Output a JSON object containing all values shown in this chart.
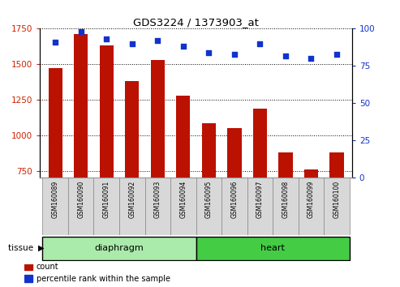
{
  "title": "GDS3224 / 1373903_at",
  "categories": [
    "GSM160089",
    "GSM160090",
    "GSM160091",
    "GSM160092",
    "GSM160093",
    "GSM160094",
    "GSM160095",
    "GSM160096",
    "GSM160097",
    "GSM160098",
    "GSM160099",
    "GSM160100"
  ],
  "counts": [
    1470,
    1715,
    1630,
    1380,
    1530,
    1280,
    1085,
    1050,
    1185,
    880,
    760,
    880
  ],
  "percentiles": [
    91,
    98,
    93,
    90,
    92,
    88,
    84,
    83,
    90,
    82,
    80,
    83
  ],
  "bar_color": "#bb1100",
  "dot_color": "#1133cc",
  "ylim_left": [
    700,
    1750
  ],
  "ylim_right": [
    0,
    100
  ],
  "yticks_left": [
    750,
    1000,
    1250,
    1500,
    1750
  ],
  "yticks_right": [
    0,
    25,
    50,
    75,
    100
  ],
  "tissue_groups": [
    {
      "label": "diaphragm",
      "start": 0,
      "end": 6,
      "color": "#aaeaaa"
    },
    {
      "label": "heart",
      "start": 6,
      "end": 12,
      "color": "#44cc44"
    }
  ],
  "legend_items": [
    {
      "label": "count",
      "color": "#bb1100"
    },
    {
      "label": "percentile rank within the sample",
      "color": "#1133cc"
    }
  ],
  "tissue_label": "tissue",
  "background_color": "#ffffff",
  "plot_bg_color": "#ffffff",
  "tick_label_color_left": "#cc2200",
  "tick_label_color_right": "#1133cc",
  "xticklabel_bg": "#cccccc",
  "n": 12
}
